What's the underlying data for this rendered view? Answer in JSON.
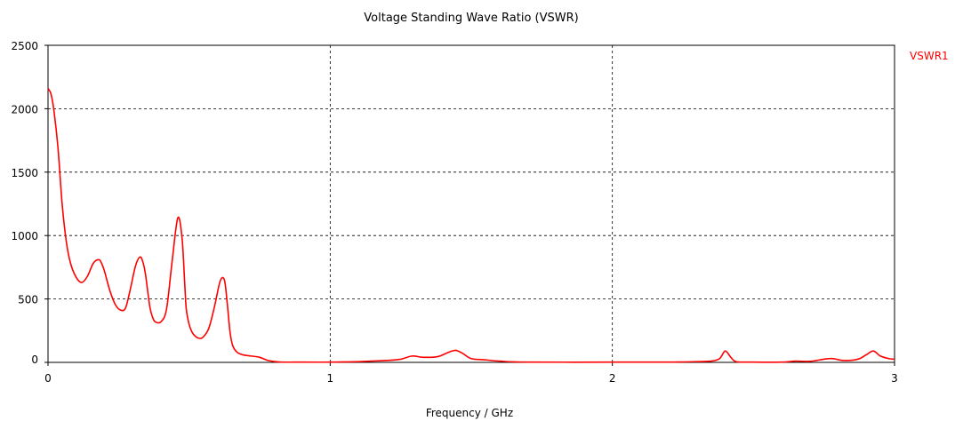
{
  "chart_data": {
    "type": "line",
    "title": "Voltage Standing Wave Ratio (VSWR)",
    "xlabel": "Frequency / GHz",
    "ylabel": "",
    "xlim": [
      0,
      3
    ],
    "ylim": [
      0,
      2500
    ],
    "xticks": [
      "0",
      "1",
      "2",
      "3"
    ],
    "yticks": [
      "0",
      "500",
      "1000",
      "1500",
      "2000",
      "2500"
    ],
    "grid": true,
    "legend_position": "top-right",
    "series": [
      {
        "name": "VSWR1",
        "color": "#ff0000",
        "x": [
          0,
          0.01,
          0.02,
          0.035,
          0.05,
          0.065,
          0.08,
          0.1,
          0.12,
          0.14,
          0.16,
          0.18,
          0.19,
          0.2,
          0.22,
          0.24,
          0.26,
          0.275,
          0.29,
          0.31,
          0.325,
          0.335,
          0.345,
          0.36,
          0.37,
          0.38,
          0.4,
          0.42,
          0.44,
          0.46,
          0.475,
          0.485,
          0.49,
          0.5,
          0.51,
          0.52,
          0.535,
          0.55,
          0.57,
          0.59,
          0.61,
          0.625,
          0.635,
          0.645,
          0.655,
          0.67,
          0.69,
          0.72,
          0.75,
          0.78,
          0.82,
          0.9,
          1.0,
          1.1,
          1.2,
          1.25,
          1.29,
          1.33,
          1.38,
          1.42,
          1.445,
          1.47,
          1.5,
          1.55,
          1.6,
          1.7,
          2.0,
          2.2,
          2.3,
          2.35,
          2.38,
          2.4,
          2.42,
          2.44,
          2.5,
          2.6,
          2.65,
          2.7,
          2.75,
          2.78,
          2.82,
          2.87,
          2.9,
          2.925,
          2.95,
          2.98,
          3.0
        ],
        "y": [
          2160,
          2120,
          2000,
          1700,
          1250,
          950,
          780,
          670,
          630,
          680,
          780,
          810,
          780,
          720,
          560,
          450,
          410,
          430,
          560,
          760,
          830,
          800,
          700,
          450,
          360,
          320,
          320,
          420,
          800,
          1140,
          980,
          600,
          420,
          300,
          240,
          210,
          190,
          200,
          270,
          440,
          640,
          650,
          470,
          240,
          130,
          80,
          60,
          50,
          40,
          15,
          3,
          2,
          2,
          6,
          15,
          25,
          50,
          40,
          45,
          80,
          95,
          70,
          30,
          20,
          10,
          2,
          2,
          2,
          6,
          10,
          30,
          90,
          40,
          5,
          2,
          2,
          10,
          8,
          25,
          30,
          15,
          25,
          60,
          90,
          50,
          30,
          25
        ]
      }
    ]
  }
}
